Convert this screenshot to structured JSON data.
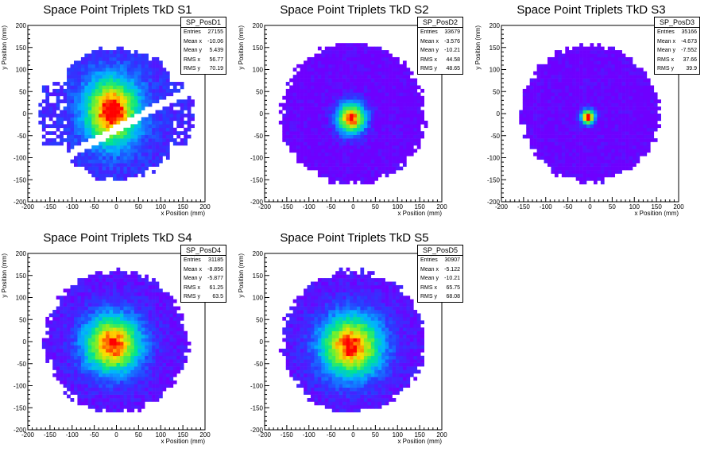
{
  "chart_data": [
    {
      "type": "heatmap",
      "title": "Space Point Triplets TkD S1",
      "xlabel": "x Position (mm)",
      "ylabel": "y Position (mm)",
      "xlim": [
        -200,
        200
      ],
      "ylim": [
        -200,
        200
      ],
      "xticks": [
        "-200",
        "-150",
        "-100",
        "-50",
        "0",
        "50",
        "100",
        "150",
        "200"
      ],
      "yticks": [
        "-200",
        "-150",
        "-100",
        "-50",
        "0",
        "50",
        "100",
        "150",
        "200"
      ],
      "stats": {
        "name": "SP_PosD1",
        "entries": "27155",
        "mean_x": "-10.06",
        "mean_y": "5.439",
        "rms_x": "56.77",
        "rms_y": "70.19"
      },
      "shape": "gap"
    },
    {
      "type": "heatmap",
      "title": "Space Point Triplets TkD S2",
      "xlabel": "x Position (mm)",
      "ylabel": "y Position (mm)",
      "xlim": [
        -200,
        200
      ],
      "ylim": [
        -200,
        200
      ],
      "xticks": [
        "-200",
        "-150",
        "-100",
        "-50",
        "0",
        "50",
        "100",
        "150",
        "200"
      ],
      "yticks": [
        "-200",
        "-150",
        "-100",
        "-50",
        "0",
        "50",
        "100",
        "150",
        "200"
      ],
      "stats": {
        "name": "SP_PosD2",
        "entries": "33679",
        "mean_x": "-3.576",
        "mean_y": "-10.21",
        "rms_x": "44.58",
        "rms_y": "48.65"
      },
      "shape": "ring"
    },
    {
      "type": "heatmap",
      "title": "Space Point Triplets TkD S3",
      "xlabel": "x Position (mm)",
      "ylabel": "y Position (mm)",
      "xlim": [
        -200,
        200
      ],
      "ylim": [
        -200,
        200
      ],
      "xticks": [
        "-200",
        "-150",
        "-100",
        "-50",
        "0",
        "50",
        "100",
        "150",
        "200"
      ],
      "yticks": [
        "-200",
        "-150",
        "-100",
        "-50",
        "0",
        "50",
        "100",
        "150",
        "200"
      ],
      "stats": {
        "name": "SP_PosD3",
        "entries": "35166",
        "mean_x": "-4.673",
        "mean_y": "-7.552",
        "rms_x": "37.66",
        "rms_y": "39.9"
      },
      "shape": "narrow"
    },
    {
      "type": "heatmap",
      "title": "Space Point Triplets TkD S4",
      "xlabel": "x Position (mm)",
      "ylabel": "y Position (mm)",
      "xlim": [
        -200,
        200
      ],
      "ylim": [
        -200,
        200
      ],
      "xticks": [
        "-200",
        "-150",
        "-100",
        "-50",
        "0",
        "50",
        "100",
        "150",
        "200"
      ],
      "yticks": [
        "-200",
        "-150",
        "-100",
        "-50",
        "0",
        "50",
        "100",
        "150",
        "200"
      ],
      "stats": {
        "name": "SP_PosD4",
        "entries": "31185",
        "mean_x": "-8.856",
        "mean_y": "-5.877",
        "rms_x": "61.25",
        "rms_y": "63.5"
      },
      "shape": "wide"
    },
    {
      "type": "heatmap",
      "title": "Space Point Triplets TkD S5",
      "xlabel": "x Position (mm)",
      "ylabel": "y Position (mm)",
      "xlim": [
        -200,
        200
      ],
      "ylim": [
        -200,
        200
      ],
      "xticks": [
        "-200",
        "-150",
        "-100",
        "-50",
        "0",
        "50",
        "100",
        "150",
        "200"
      ],
      "yticks": [
        "-200",
        "-150",
        "-100",
        "-50",
        "0",
        "50",
        "100",
        "150",
        "200"
      ],
      "stats": {
        "name": "SP_PosD5",
        "entries": "30907",
        "mean_x": "-5.122",
        "mean_y": "-10.21",
        "rms_x": "65.75",
        "rms_y": "68.08"
      },
      "shape": "wide2"
    }
  ],
  "stats_labels": {
    "entries": "Entries",
    "mean_x": "Mean x",
    "mean_y": "Mean y",
    "rms_x": "RMS x",
    "rms_y": "RMS y"
  }
}
